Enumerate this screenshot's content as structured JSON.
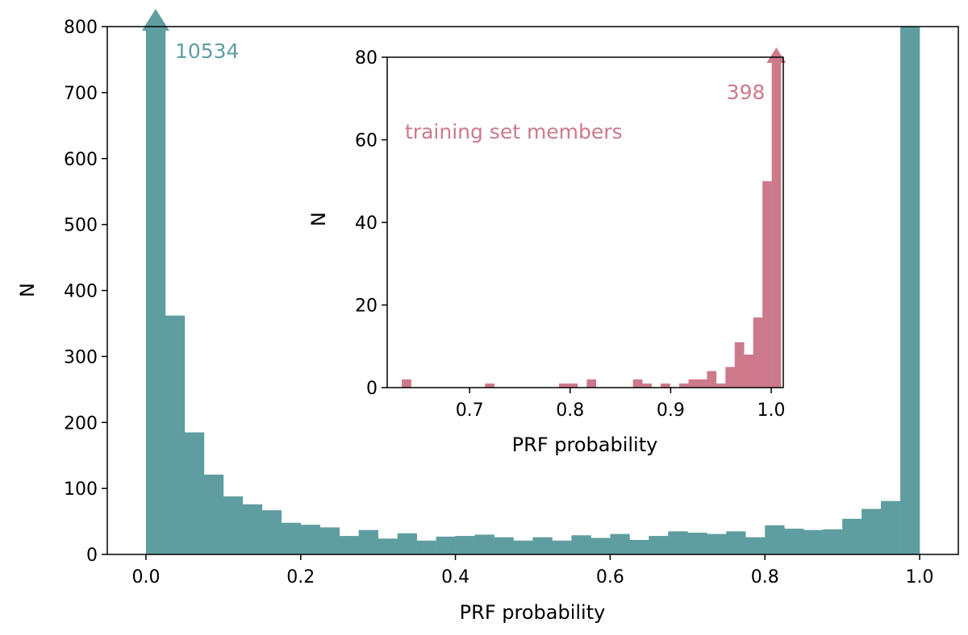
{
  "chart_data": [
    {
      "type": "bar",
      "role": "main-histogram",
      "title": "",
      "xlabel": "PRF probability",
      "ylabel": "N",
      "xlim": [
        -0.05,
        1.05
      ],
      "ylim": [
        0,
        800
      ],
      "xticks": [
        0.0,
        0.2,
        0.4,
        0.6,
        0.8,
        1.0
      ],
      "xtick_labels": [
        "0.0",
        "0.2",
        "0.4",
        "0.6",
        "0.8",
        "1.0"
      ],
      "yticks": [
        0,
        100,
        200,
        300,
        400,
        500,
        600,
        700,
        800
      ],
      "ytick_labels": [
        "0",
        "100",
        "200",
        "300",
        "400",
        "500",
        "600",
        "700",
        "800"
      ],
      "bin_start": 0.0,
      "bin_width": 0.025,
      "color": "#5f9ea0",
      "values": [
        10534,
        362,
        185,
        121,
        88,
        76,
        67,
        48,
        45,
        41,
        28,
        37,
        24,
        32,
        21,
        27,
        28,
        30,
        26,
        21,
        26,
        21,
        29,
        25,
        31,
        22,
        28,
        35,
        33,
        31,
        35,
        26,
        44,
        39,
        37,
        38,
        54,
        69,
        81,
        818
      ],
      "annotation": {
        "text": "10534",
        "bin_index": 0,
        "color": "#5f9ea0"
      }
    },
    {
      "type": "bar",
      "role": "inset-histogram",
      "title": "",
      "xlabel": "PRF probability",
      "ylabel": "N",
      "xlim": [
        0.618,
        1.012
      ],
      "ylim": [
        0,
        80
      ],
      "xticks": [
        0.7,
        0.8,
        0.9,
        1.0
      ],
      "xtick_labels": [
        "0.7",
        "0.8",
        "0.9",
        "1.0"
      ],
      "yticks": [
        0,
        20,
        40,
        60,
        80
      ],
      "ytick_labels": [
        "0",
        "20",
        "40",
        "60",
        "80"
      ],
      "bin_start": 0.6325,
      "bin_width": 0.0092,
      "color": "#cc7a8b",
      "values": [
        2,
        0,
        0,
        0,
        0,
        0,
        0,
        0,
        0,
        1,
        0,
        0,
        0,
        0,
        0,
        0,
        0,
        1,
        1,
        0,
        2,
        0,
        0,
        0,
        0,
        2,
        1,
        0,
        1,
        0,
        1,
        2,
        2,
        4,
        1,
        5,
        11,
        8,
        17,
        50,
        398
      ],
      "annotation": {
        "text": "398",
        "bin_index": 40,
        "color": "#cc7a8b"
      },
      "legend_text": "training set members"
    }
  ]
}
